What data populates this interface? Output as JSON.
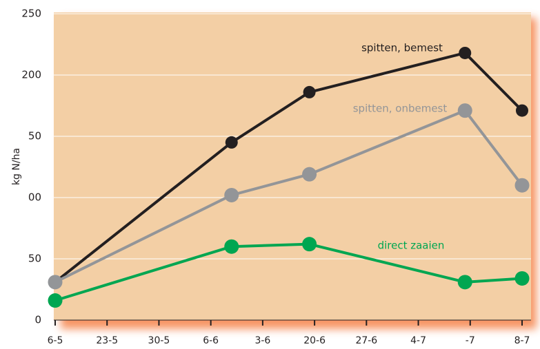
{
  "chart_data": {
    "type": "line",
    "y_label": "kg N/ha",
    "x": [
      0,
      3.4,
      4.9,
      7.9,
      9
    ],
    "series": [
      {
        "name": "spitten, bemest",
        "color": "#231f20",
        "values": [
          31,
          145,
          186,
          218,
          171
        ]
      },
      {
        "name": "spitten, onbemest",
        "color": "#939598",
        "values": [
          31,
          102,
          119,
          171,
          110
        ]
      },
      {
        "name": "direct zaaien",
        "color": "#00a651",
        "values": [
          16,
          60,
          62,
          31,
          34
        ]
      }
    ],
    "xlim": [
      0,
      9
    ],
    "xticks": [
      {
        "value": 0,
        "label": "6-5"
      },
      {
        "value": 1,
        "label": "23-5"
      },
      {
        "value": 2,
        "label": "30-5"
      },
      {
        "value": 3,
        "label": "6-6"
      },
      {
        "value": 4,
        "label": "3-6"
      },
      {
        "value": 5,
        "label": "20-6"
      },
      {
        "value": 6,
        "label": "27-6"
      },
      {
        "value": 7,
        "label": "4-7"
      },
      {
        "value": 8,
        "label": "-7"
      },
      {
        "value": 9,
        "label": "8-7"
      }
    ],
    "ylim": [
      0,
      250
    ],
    "yticks": [
      0,
      50,
      {
        "value": 100,
        "label": "00"
      },
      {
        "value": 150,
        "label": "50"
      },
      200,
      250
    ],
    "grid": true,
    "background": "#f3cfa5"
  }
}
